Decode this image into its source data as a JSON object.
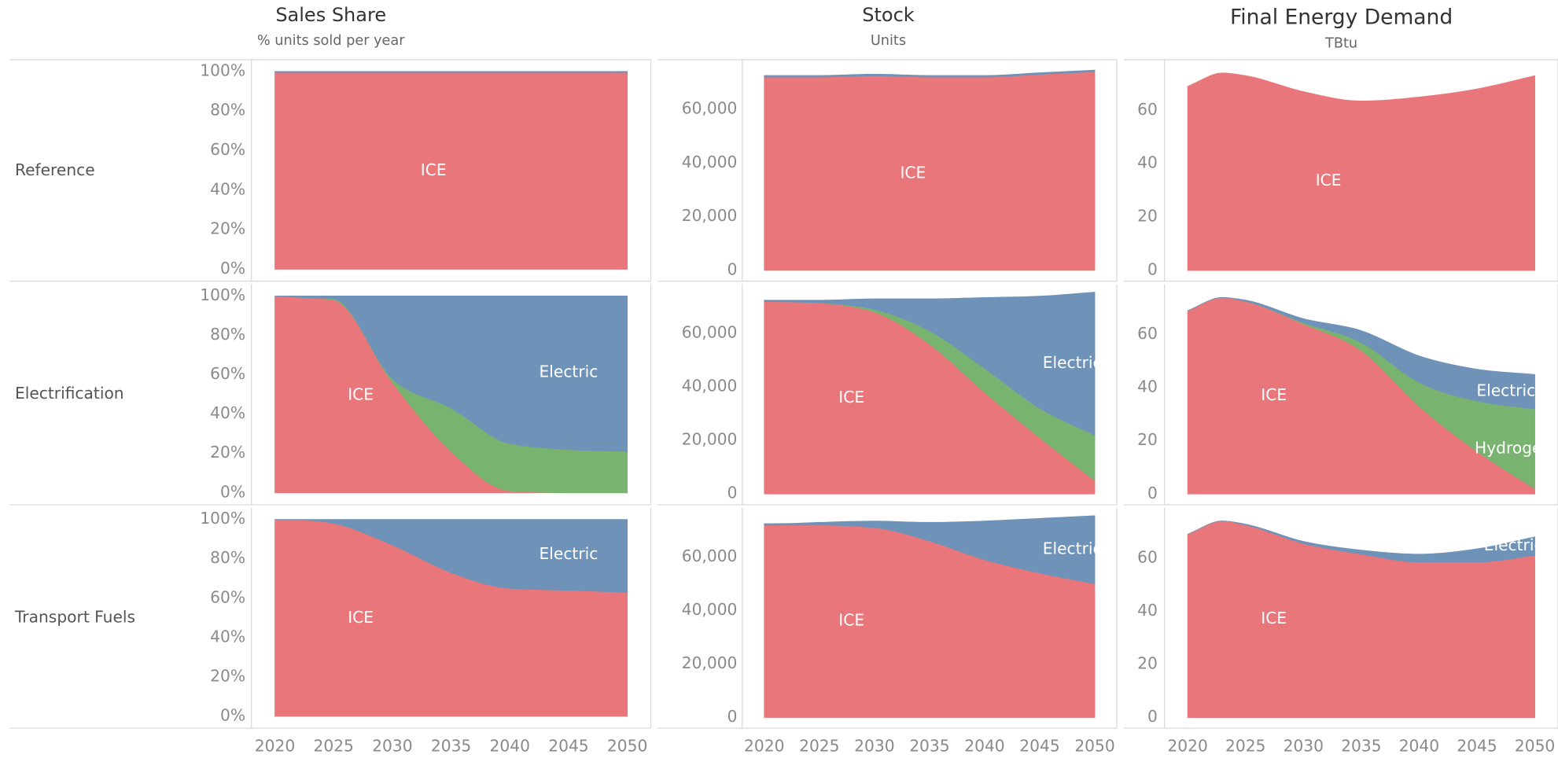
{
  "columns": [
    {
      "title": "Sales Share",
      "subtitle": "% units sold per year"
    },
    {
      "title": "Stock",
      "subtitle": "Units"
    },
    {
      "title": "Final Energy Demand",
      "subtitle": "TBtu"
    }
  ],
  "rows": [
    "Reference",
    "Electrification",
    "Transport Fuels"
  ],
  "chart_data": [
    {
      "type": "area",
      "stacked": true,
      "x": [
        2020,
        2023,
        2025,
        2030,
        2035,
        2040,
        2045,
        2050
      ],
      "xlim": [
        2018,
        2052
      ],
      "ylim": [
        -6,
        106
      ],
      "yticks": [
        {
          "value": 0,
          "label": "0%"
        },
        {
          "value": 20,
          "label": "20%"
        },
        {
          "value": 40,
          "label": "40%"
        },
        {
          "value": 60,
          "label": "60%"
        },
        {
          "value": 80,
          "label": "80%"
        },
        {
          "value": 100,
          "label": "100%"
        }
      ],
      "series": [
        {
          "name": "ICE",
          "color": "#e8767a",
          "values": [
            99.5,
            99.5,
            99.5,
            99.5,
            99.5,
            99.5,
            99.5,
            99.5
          ]
        },
        {
          "color": "#6f93b8",
          "values": [
            0.5,
            0.5,
            0.5,
            0.5,
            0.5,
            0.5,
            0.5,
            0.5
          ]
        }
      ]
    },
    {
      "type": "area",
      "stacked": true,
      "x": [
        2020,
        2023,
        2025,
        2030,
        2035,
        2040,
        2045,
        2050
      ],
      "xlim": [
        2018,
        2052
      ],
      "ylim": [
        -4000,
        78500
      ],
      "yticks": [
        0,
        {
          "value": 20000,
          "label": "20,000"
        },
        {
          "value": 40000,
          "label": "40,000"
        },
        {
          "value": 60000,
          "label": "60,000"
        }
      ],
      "series": [
        {
          "name": "ICE",
          "color": "#e8767a",
          "values": [
            72000,
            72000,
            72000,
            72500,
            72000,
            72000,
            73000,
            74000
          ]
        },
        {
          "color": "#6f93b8",
          "values": [
            600,
            600,
            600,
            600,
            600,
            600,
            600,
            600
          ]
        }
      ]
    },
    {
      "type": "area",
      "stacked": true,
      "x": [
        2020,
        2023,
        2025,
        2030,
        2035,
        2040,
        2045,
        2050
      ],
      "xlim": [
        2018,
        2052
      ],
      "ylim": [
        -4,
        79
      ],
      "yticks": [
        0,
        20,
        40,
        60
      ],
      "series": [
        {
          "name": "ICE",
          "color": "#e8767a",
          "values": [
            69,
            74,
            73,
            67,
            63.5,
            65,
            68,
            73
          ]
        }
      ]
    },
    {
      "type": "area",
      "stacked": true,
      "x": [
        2020,
        2023,
        2025,
        2030,
        2035,
        2040,
        2045,
        2050
      ],
      "xlim": [
        2018,
        2052
      ],
      "ylim": [
        -6,
        106
      ],
      "yticks": [
        {
          "value": 0,
          "label": "0%"
        },
        {
          "value": 20,
          "label": "20%"
        },
        {
          "value": 40,
          "label": "40%"
        },
        {
          "value": 60,
          "label": "60%"
        },
        {
          "value": 80,
          "label": "80%"
        },
        {
          "value": 100,
          "label": "100%"
        }
      ],
      "series": [
        {
          "name": "ICE",
          "color": "#e8767a",
          "values": [
            100,
            99,
            98,
            56,
            21,
            1,
            0,
            0
          ]
        },
        {
          "color": "#78b46f",
          "values": [
            0,
            0,
            0.5,
            2,
            22,
            24,
            22,
            21
          ]
        },
        {
          "name": "Electric",
          "color": "#6f93b8",
          "values": [
            0,
            1,
            1.5,
            42,
            57,
            75,
            78,
            79
          ]
        }
      ]
    },
    {
      "type": "area",
      "stacked": true,
      "x": [
        2020,
        2023,
        2025,
        2030,
        2035,
        2040,
        2045,
        2050
      ],
      "xlim": [
        2018,
        2052
      ],
      "ylim": [
        -4000,
        78500
      ],
      "yticks": [
        0,
        {
          "value": 20000,
          "label": "20,000"
        },
        {
          "value": 40000,
          "label": "40,000"
        },
        {
          "value": 60000,
          "label": "60,000"
        }
      ],
      "series": [
        {
          "name": "ICE",
          "color": "#e8767a",
          "values": [
            72000,
            71800,
            71500,
            68000,
            56000,
            38000,
            21000,
            5000
          ]
        },
        {
          "color": "#78b46f",
          "values": [
            0,
            0,
            0,
            1000,
            5000,
            9000,
            11000,
            17000
          ]
        },
        {
          "name": "Electric",
          "color": "#6f93b8",
          "values": [
            500,
            700,
            1000,
            4000,
            12000,
            26500,
            42000,
            53500
          ]
        }
      ]
    },
    {
      "type": "area",
      "stacked": true,
      "x": [
        2020,
        2023,
        2025,
        2030,
        2035,
        2040,
        2045,
        2050
      ],
      "xlim": [
        2018,
        2052
      ],
      "ylim": [
        -4,
        79
      ],
      "yticks": [
        0,
        20,
        40,
        60
      ],
      "series": [
        {
          "name": "ICE",
          "color": "#e8767a",
          "values": [
            69,
            74,
            72.5,
            64,
            54,
            33,
            16,
            2
          ]
        },
        {
          "name": "Hydrogen",
          "color": "#78b46f",
          "values": [
            0,
            0,
            0,
            0.5,
            3,
            9,
            19,
            30
          ]
        },
        {
          "name": "Electric",
          "color": "#6f93b8",
          "values": [
            0,
            0,
            0.5,
            1.5,
            4.5,
            10,
            12,
            13
          ]
        }
      ]
    },
    {
      "type": "area",
      "stacked": true,
      "x": [
        2020,
        2023,
        2025,
        2030,
        2035,
        2040,
        2045,
        2050
      ],
      "xlim": [
        2018,
        2052
      ],
      "xticks": [
        2020,
        2025,
        2030,
        2035,
        2040,
        2045,
        2050
      ],
      "ylim": [
        -6,
        106
      ],
      "yticks": [
        {
          "value": 0,
          "label": "0%"
        },
        {
          "value": 20,
          "label": "20%"
        },
        {
          "value": 40,
          "label": "40%"
        },
        {
          "value": 60,
          "label": "60%"
        },
        {
          "value": 80,
          "label": "80%"
        },
        {
          "value": 100,
          "label": "100%"
        }
      ],
      "series": [
        {
          "name": "ICE",
          "color": "#e8767a",
          "values": [
            100,
            99.5,
            98,
            87,
            73,
            65,
            64,
            63
          ]
        },
        {
          "name": "Electric",
          "color": "#6f93b8",
          "values": [
            0,
            0.5,
            2,
            13,
            27,
            35,
            36,
            37
          ]
        }
      ]
    },
    {
      "type": "area",
      "stacked": true,
      "x": [
        2020,
        2023,
        2025,
        2030,
        2035,
        2040,
        2045,
        2050
      ],
      "xlim": [
        2018,
        2052
      ],
      "xticks": [
        2020,
        2025,
        2030,
        2035,
        2040,
        2045,
        2050
      ],
      "ylim": [
        -4000,
        78500
      ],
      "yticks": [
        0,
        {
          "value": 20000,
          "label": "20,000"
        },
        {
          "value": 40000,
          "label": "40,000"
        },
        {
          "value": 60000,
          "label": "60,000"
        }
      ],
      "series": [
        {
          "name": "ICE",
          "color": "#e8767a",
          "values": [
            72000,
            72000,
            72000,
            71000,
            66000,
            59000,
            54000,
            50000
          ]
        },
        {
          "name": "Electric",
          "color": "#6f93b8",
          "values": [
            500,
            700,
            1000,
            2500,
            7000,
            14500,
            20500,
            25500
          ]
        }
      ]
    },
    {
      "type": "area",
      "stacked": true,
      "x": [
        2020,
        2023,
        2025,
        2030,
        2035,
        2040,
        2045,
        2050
      ],
      "xlim": [
        2018,
        2052
      ],
      "xticks": [
        2020,
        2025,
        2030,
        2035,
        2040,
        2045,
        2050
      ],
      "ylim": [
        -4,
        79
      ],
      "yticks": [
        0,
        20,
        40,
        60
      ],
      "series": [
        {
          "name": "ICE",
          "color": "#e8767a",
          "values": [
            69,
            74,
            72.5,
            65.5,
            61.5,
            58.5,
            58.5,
            61
          ]
        },
        {
          "name": "Electric",
          "color": "#6f93b8",
          "values": [
            0,
            0,
            0.3,
            0.8,
            1.5,
            3,
            5,
            7
          ]
        }
      ]
    }
  ]
}
